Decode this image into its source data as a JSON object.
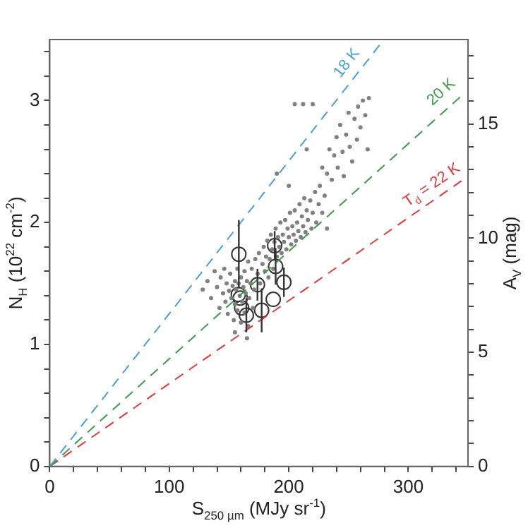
{
  "chart_data": {
    "type": "scatter",
    "xlabel": "S$_{250 µm}$ (MJy sr$^{-1}$)",
    "ylabel": "N$_{H}$ (10$^{22}$ cm$^{-2}$)",
    "y2label": "A$_{V}$ (mag)",
    "xlim": [
      0,
      350
    ],
    "xticks": [
      0,
      {
        "value": 20,
        "label": null
      },
      {
        "value": 40,
        "label": null
      },
      {
        "value": 60,
        "label": null
      },
      {
        "value": 80,
        "label": null
      },
      100,
      {
        "value": 120,
        "label": null
      },
      {
        "value": 140,
        "label": null
      },
      {
        "value": 160,
        "label": null
      },
      {
        "value": 180,
        "label": null
      },
      200,
      {
        "value": 220,
        "label": null
      },
      {
        "value": 240,
        "label": null
      },
      {
        "value": 260,
        "label": null
      },
      {
        "value": 280,
        "label": null
      },
      300,
      {
        "value": 320,
        "label": null
      },
      {
        "value": 340,
        "label": null
      }
    ],
    "ylim": [
      0,
      3.5
    ],
    "yticks": [
      0,
      {
        "value": 0.2,
        "label": null
      },
      {
        "value": 0.4,
        "label": null
      },
      {
        "value": 0.6,
        "label": null
      },
      {
        "value": 0.8,
        "label": null
      },
      1,
      {
        "value": 1.2,
        "label": null
      },
      {
        "value": 1.4,
        "label": null
      },
      {
        "value": 1.6,
        "label": null
      },
      {
        "value": 1.8,
        "label": null
      },
      2,
      {
        "value": 2.2,
        "label": null
      },
      {
        "value": 2.4,
        "label": null
      },
      {
        "value": 2.6,
        "label": null
      },
      {
        "value": 2.8,
        "label": null
      },
      3,
      {
        "value": 3.2,
        "label": null
      },
      {
        "value": 3.4,
        "label": null
      }
    ],
    "y2lim": [
      0,
      18.7
    ],
    "y2ticks": [
      0,
      {
        "value": 1,
        "label": null
      },
      {
        "value": 2,
        "label": null
      },
      {
        "value": 3,
        "label": null
      },
      {
        "value": 4,
        "label": null
      },
      5,
      {
        "value": 6,
        "label": null
      },
      {
        "value": 7,
        "label": null
      },
      {
        "value": 8,
        "label": null
      },
      {
        "value": 9,
        "label": null
      },
      10,
      {
        "value": 11,
        "label": null
      },
      {
        "value": 12,
        "label": null
      },
      {
        "value": 13,
        "label": null
      },
      {
        "value": 14,
        "label": null
      },
      15,
      {
        "value": 16,
        "label": null
      },
      {
        "value": 17,
        "label": null
      },
      {
        "value": 18,
        "label": null
      }
    ],
    "grid": false,
    "legend": false,
    "annotations": [
      {
        "text": "18 K",
        "x": 256,
        "y": 3.25
      },
      {
        "text": "20 K",
        "x": 334,
        "y": 3.0
      },
      {
        "text": "T$_{d}$ = 22 K",
        "x": 325,
        "y": 2.23
      }
    ],
    "series": [
      {
        "type": "line",
        "color": "#4a9edb",
        "line_style": "dashed",
        "marker": "none",
        "x": [
          0,
          279.6
        ],
        "values": [
          0,
          3.5
        ]
      },
      {
        "type": "line",
        "color": "#3a9a4a",
        "line_style": "dashed",
        "marker": "none",
        "x": [
          0,
          345.8
        ],
        "values": [
          0,
          3.05
        ]
      },
      {
        "type": "line",
        "color": "#e0393a",
        "line_style": "dashed",
        "marker": "none",
        "x": [
          0,
          345.8
        ],
        "values": [
          0,
          2.35
        ]
      },
      {
        "type": "scatter",
        "color": "#808080",
        "marker": "circle",
        "x": [
          128,
          132,
          135,
          138,
          140,
          142,
          143,
          145,
          146,
          147,
          148,
          149,
          150,
          151,
          152,
          153,
          154,
          155,
          155,
          156,
          157,
          157,
          158,
          159,
          160,
          160,
          161,
          162,
          163,
          163,
          164,
          165,
          166,
          166,
          167,
          168,
          169,
          170,
          171,
          172,
          165,
          155,
          174,
          175,
          176,
          178,
          179,
          180,
          181,
          182,
          183,
          184,
          185,
          186,
          187,
          188,
          189,
          190,
          191,
          192,
          193,
          194,
          195,
          196,
          197,
          198,
          199,
          200,
          201,
          202,
          203,
          204,
          205,
          206,
          207,
          208,
          209,
          210,
          211,
          212,
          213,
          214,
          215,
          216,
          218,
          219,
          220,
          222,
          223,
          225,
          226,
          228,
          230,
          232,
          228,
          232,
          234,
          236,
          238,
          240,
          241,
          243,
          245,
          246,
          248,
          250,
          251,
          253,
          255,
          257,
          258,
          260,
          262,
          264,
          266,
          267,
          205,
          212,
          220,
          190,
          215,
          200
        ],
        "values": [
          1.45,
          1.52,
          1.38,
          1.6,
          1.47,
          1.3,
          1.55,
          1.42,
          1.62,
          1.35,
          1.5,
          1.25,
          1.44,
          1.58,
          1.38,
          1.48,
          1.2,
          1.52,
          1.33,
          1.45,
          1.62,
          1.28,
          1.5,
          1.4,
          1.55,
          1.18,
          1.35,
          1.47,
          1.6,
          1.26,
          1.42,
          1.52,
          1.15,
          1.68,
          1.38,
          1.5,
          1.62,
          1.3,
          1.45,
          1.7,
          1.05,
          1.1,
          1.58,
          1.75,
          1.5,
          1.66,
          1.8,
          1.6,
          1.72,
          1.85,
          1.55,
          1.7,
          1.9,
          1.78,
          1.62,
          1.84,
          1.95,
          1.72,
          1.88,
          1.8,
          2.0,
          1.75,
          1.9,
          1.84,
          2.02,
          1.78,
          1.95,
          1.88,
          2.08,
          1.82,
          1.97,
          1.9,
          2.1,
          1.85,
          2.0,
          1.93,
          2.15,
          1.88,
          2.05,
          1.97,
          2.2,
          1.92,
          2.1,
          2.02,
          2.18,
          1.95,
          2.08,
          2.25,
          2.0,
          2.15,
          2.3,
          2.08,
          2.22,
          1.95,
          2.45,
          2.4,
          2.6,
          2.35,
          2.55,
          2.7,
          2.45,
          2.8,
          2.58,
          2.38,
          2.72,
          2.9,
          2.62,
          2.5,
          2.85,
          2.68,
          2.95,
          2.78,
          3.0,
          2.88,
          2.6,
          3.02,
          2.97,
          2.97,
          2.97,
          2.4,
          2.6,
          2.3
        ]
      },
      {
        "type": "scatter",
        "color": "#333333",
        "marker": "circle",
        "x": [
          158.2,
          157.8,
          159.4,
          160.6,
          164.5,
          173.8,
          177.3,
          188.2,
          189,
          187,
          195.9
        ],
        "values": [
          1.74,
          1.41,
          1.38,
          1.3,
          1.24,
          1.49,
          1.28,
          1.81,
          1.64,
          1.37,
          1.51
        ],
        "errors": [
          0.28,
          null,
          null,
          null,
          0.14,
          0.13,
          0.18,
          0.12,
          0.15,
          null,
          0.12
        ]
      }
    ]
  }
}
